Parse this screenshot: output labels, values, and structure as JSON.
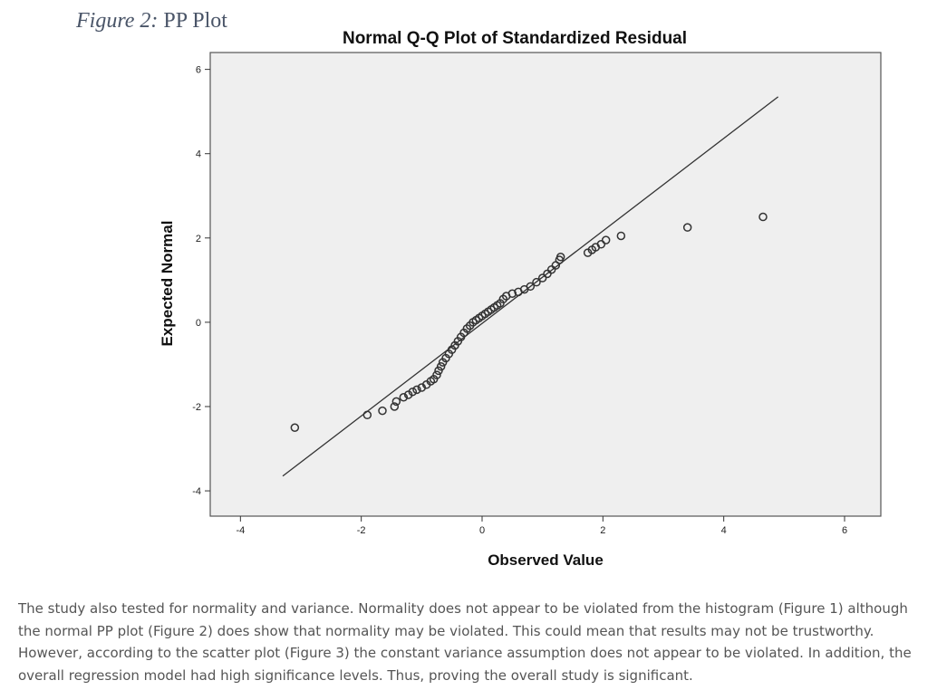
{
  "caption": {
    "label": "Figure 2:",
    "title": "PP Plot"
  },
  "chart_data": {
    "type": "scatter",
    "title": "Normal Q-Q Plot of Standardized Residual",
    "xlabel": "Observed Value",
    "ylabel": "Expected Normal",
    "xlim": [
      -4.5,
      6.6
    ],
    "ylim": [
      -4.6,
      6.4
    ],
    "xticks": [
      -4,
      -2,
      0,
      2,
      4,
      6
    ],
    "yticks": [
      -4,
      -2,
      0,
      2,
      4,
      6
    ],
    "grid": false,
    "reference_line": {
      "x": [
        -3.3,
        4.9
      ],
      "y": [
        -3.65,
        5.35
      ]
    },
    "points": [
      [
        -3.1,
        -2.5
      ],
      [
        -1.9,
        -2.2
      ],
      [
        -1.65,
        -2.1
      ],
      [
        -1.45,
        -2.0
      ],
      [
        -1.42,
        -1.88
      ],
      [
        -1.3,
        -1.78
      ],
      [
        -1.22,
        -1.72
      ],
      [
        -1.15,
        -1.65
      ],
      [
        -1.08,
        -1.6
      ],
      [
        -1.0,
        -1.55
      ],
      [
        -0.92,
        -1.48
      ],
      [
        -0.85,
        -1.4
      ],
      [
        -0.8,
        -1.35
      ],
      [
        -0.75,
        -1.25
      ],
      [
        -0.72,
        -1.15
      ],
      [
        -0.68,
        -1.05
      ],
      [
        -0.65,
        -0.95
      ],
      [
        -0.6,
        -0.85
      ],
      [
        -0.55,
        -0.75
      ],
      [
        -0.5,
        -0.65
      ],
      [
        -0.45,
        -0.55
      ],
      [
        -0.4,
        -0.45
      ],
      [
        -0.35,
        -0.35
      ],
      [
        -0.3,
        -0.25
      ],
      [
        -0.25,
        -0.15
      ],
      [
        -0.2,
        -0.08
      ],
      [
        -0.15,
        0.0
      ],
      [
        -0.1,
        0.05
      ],
      [
        -0.05,
        0.1
      ],
      [
        0.0,
        0.15
      ],
      [
        0.05,
        0.2
      ],
      [
        0.1,
        0.25
      ],
      [
        0.15,
        0.3
      ],
      [
        0.2,
        0.35
      ],
      [
        0.25,
        0.4
      ],
      [
        0.3,
        0.45
      ],
      [
        0.35,
        0.55
      ],
      [
        0.4,
        0.62
      ],
      [
        0.5,
        0.68
      ],
      [
        0.6,
        0.72
      ],
      [
        0.7,
        0.78
      ],
      [
        0.8,
        0.85
      ],
      [
        0.9,
        0.95
      ],
      [
        1.0,
        1.05
      ],
      [
        1.08,
        1.15
      ],
      [
        1.15,
        1.25
      ],
      [
        1.22,
        1.35
      ],
      [
        1.28,
        1.48
      ],
      [
        1.3,
        1.55
      ],
      [
        1.75,
        1.65
      ],
      [
        1.82,
        1.72
      ],
      [
        1.88,
        1.78
      ],
      [
        1.97,
        1.85
      ],
      [
        2.05,
        1.95
      ],
      [
        2.3,
        2.05
      ],
      [
        3.4,
        2.25
      ],
      [
        4.65,
        2.5
      ]
    ]
  },
  "paragraph": "The study also tested for normality and variance. Normality does not appear to be violated from the histogram (Figure 1) although the normal PP plot (Figure 2) does show that normality may be violated. This could mean that results may not be trustworthy. However, according to the scatter plot (Figure 3) the constant variance assumption does not appear to be violated. In addition, the overall regression model had high significance levels. Thus, proving the overall study is significant.",
  "colors": {
    "plot_background": "#efefef",
    "marker": "#333333",
    "line": "#333333",
    "frame": "#555555"
  }
}
